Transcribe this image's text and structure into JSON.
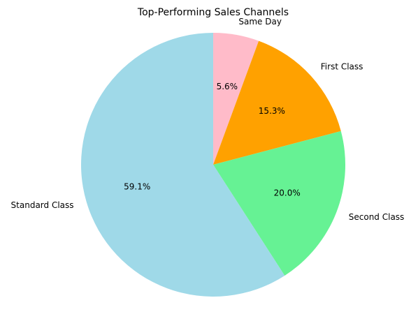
{
  "chart_data": {
    "type": "pie",
    "title": "Top-Performing Sales Channels",
    "start_angle_deg": 90,
    "direction": "clockwise",
    "legend": "none",
    "slices": [
      {
        "label": "Same Day",
        "value": 5.6,
        "pct_label": "5.6%",
        "color": "#ffbbc9"
      },
      {
        "label": "First Class",
        "value": 15.3,
        "pct_label": "15.3%",
        "color": "#ffa100"
      },
      {
        "label": "Second Class",
        "value": 20.0,
        "pct_label": "20.0%",
        "color": "#66f294"
      },
      {
        "label": "Standard Class",
        "value": 59.1,
        "pct_label": "59.1%",
        "color": "#9fd9e8"
      }
    ]
  }
}
